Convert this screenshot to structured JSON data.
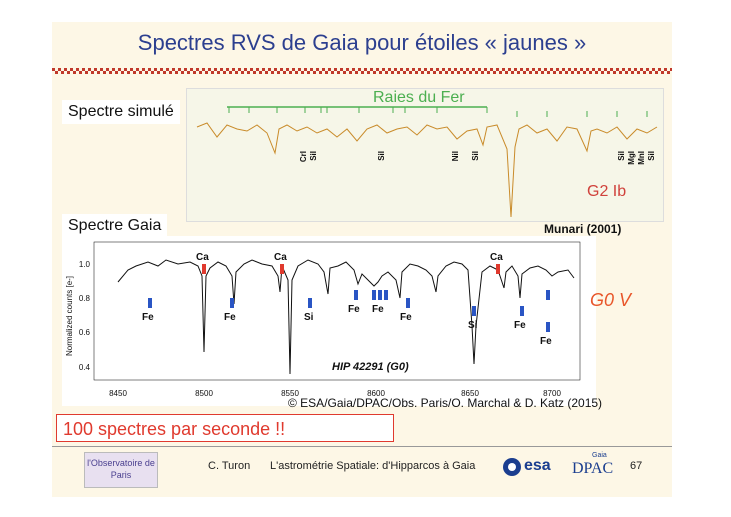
{
  "title": "Spectres RVS de Gaia pour étoiles « jaunes »",
  "simulated": {
    "label": "Spectre simulé",
    "iron_label": "Raies du Fer",
    "spectral_type": "G2 Ib",
    "reference": "Munari (2001)",
    "line_ids": [
      "CrI",
      "SiI",
      "SiI",
      "NiI",
      "SiI",
      "SiI",
      "MgI",
      "MnI",
      "SiI"
    ]
  },
  "gaia": {
    "label": "Spectre Gaia",
    "ylabel": "Normalized counts [e-]",
    "star": "HIP 42291 (G0)",
    "spectral_type": "G0 V",
    "xticks": [
      "8450",
      "8500",
      "8550",
      "8600",
      "8650",
      "8700"
    ],
    "yticks": [
      "0.4",
      "0.6",
      "0.8",
      "1.0"
    ],
    "ca_labels": [
      "Ca",
      "Ca",
      "Ca"
    ],
    "element_labels": [
      "Fe",
      "Fe",
      "Si",
      "Fe",
      "Fe",
      "Fe",
      "Si",
      "Fe",
      "Fe"
    ]
  },
  "credit": "© ESA/Gaia/DPAC/Obs. Paris/O. Marchal & D. Katz (2015)",
  "callout": "100 spectres par seconde !!",
  "footer": {
    "logo_left": "l'Observatoire de Paris",
    "author": "C. Turon",
    "talk": "L'astrométrie Spatiale: d'Hipparcos à Gaia",
    "esa": "esa",
    "dpac": "DPAC",
    "gaia_small": "Gaia",
    "page": "67"
  }
}
